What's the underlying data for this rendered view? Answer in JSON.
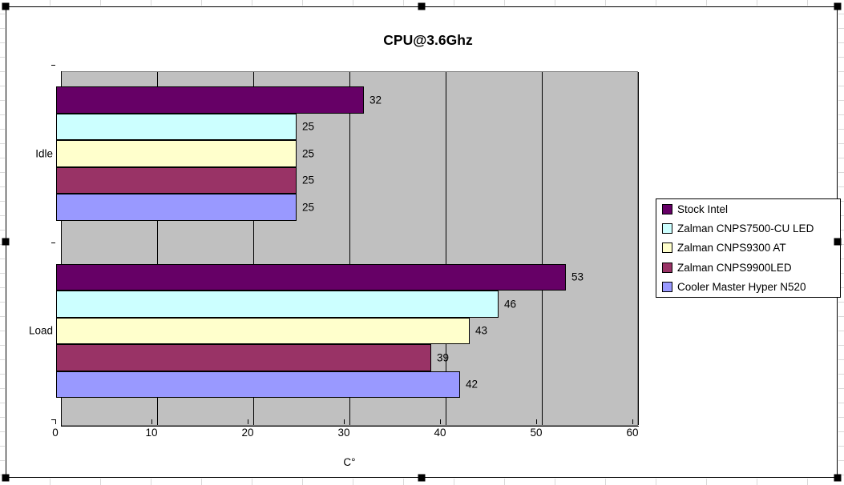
{
  "chart_data": {
    "type": "bar",
    "orientation": "horizontal",
    "title": "CPU@3.6Ghz",
    "xlabel": "C°",
    "xlim": [
      0,
      60
    ],
    "xticks": [
      0,
      10,
      20,
      30,
      40,
      50,
      60
    ],
    "categories": [
      "Idle",
      "Load"
    ],
    "series": [
      {
        "name": "Stock Intel",
        "color": "#660066",
        "values": [
          32,
          53
        ]
      },
      {
        "name": "Zalman CNPS7500-CU LED",
        "color": "#CCFFFF",
        "values": [
          25,
          46
        ]
      },
      {
        "name": "Zalman CNPS9300 AT",
        "color": "#FFFFCC",
        "values": [
          25,
          43
        ]
      },
      {
        "name": "Zalman CNPS9900LED",
        "color": "#993366",
        "values": [
          25,
          39
        ]
      },
      {
        "name": "Cooler Master Hyper N520",
        "color": "#9999FF",
        "values": [
          25,
          42
        ]
      }
    ],
    "data_labels": true,
    "legend_position": "right",
    "plot_background": "#C0C0C0",
    "gridlines": "vertical",
    "gridline_color": "#000000"
  },
  "selection": {
    "state": "chart-object-selected",
    "handles": [
      "top-left",
      "top-center",
      "top-right",
      "middle-left",
      "middle-right",
      "bottom-left",
      "bottom-center",
      "bottom-right"
    ]
  }
}
